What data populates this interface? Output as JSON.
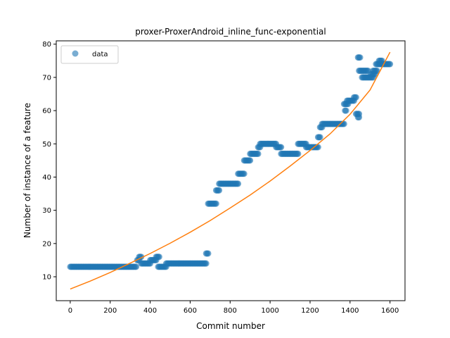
{
  "chart_data": {
    "type": "scatter",
    "title": "proxer-ProxerAndroid_inline_func-exponential",
    "xlabel": "Commit number",
    "ylabel": "Number of instance of a feature",
    "xlim": [
      -70,
      1675
    ],
    "ylim": [
      2.8,
      81
    ],
    "xticks": [
      0,
      200,
      400,
      600,
      800,
      1000,
      1200,
      1400,
      1600
    ],
    "yticks": [
      10,
      20,
      30,
      40,
      50,
      60,
      70,
      80
    ],
    "grid": false,
    "legend": {
      "position": "upper-left",
      "entries": [
        "data"
      ]
    },
    "colors": {
      "data": "#1f77b4",
      "fit": "#ff7f0e"
    },
    "series": [
      {
        "name": "data",
        "kind": "scatter",
        "segments": [
          {
            "x_start": 0,
            "x_end": 330,
            "y": 13
          },
          {
            "x_start": 335,
            "x_end": 345,
            "y": 15
          },
          {
            "x_start": 345,
            "x_end": 355,
            "y": 16
          },
          {
            "x_start": 355,
            "x_end": 400,
            "y": 14
          },
          {
            "x_start": 400,
            "x_end": 430,
            "y": 15
          },
          {
            "x_start": 430,
            "x_end": 445,
            "y": 16
          },
          {
            "x_start": 440,
            "x_end": 480,
            "y": 13
          },
          {
            "x_start": 480,
            "x_end": 680,
            "y": 14
          },
          {
            "x_start": 680,
            "x_end": 690,
            "y": 17
          },
          {
            "x_start": 690,
            "x_end": 730,
            "y": 32
          },
          {
            "x_start": 730,
            "x_end": 745,
            "y": 36
          },
          {
            "x_start": 745,
            "x_end": 840,
            "y": 38
          },
          {
            "x_start": 840,
            "x_end": 870,
            "y": 41
          },
          {
            "x_start": 870,
            "x_end": 900,
            "y": 45
          },
          {
            "x_start": 900,
            "x_end": 940,
            "y": 47
          },
          {
            "x_start": 940,
            "x_end": 950,
            "y": 49
          },
          {
            "x_start": 950,
            "x_end": 1030,
            "y": 50
          },
          {
            "x_start": 1030,
            "x_end": 1055,
            "y": 49
          },
          {
            "x_start": 1055,
            "x_end": 1140,
            "y": 47
          },
          {
            "x_start": 1140,
            "x_end": 1180,
            "y": 50
          },
          {
            "x_start": 1180,
            "x_end": 1240,
            "y": 49
          },
          {
            "x_start": 1240,
            "x_end": 1250,
            "y": 52
          },
          {
            "x_start": 1250,
            "x_end": 1260,
            "y": 55
          },
          {
            "x_start": 1260,
            "x_end": 1370,
            "y": 56
          },
          {
            "x_start": 1375,
            "x_end": 1380,
            "y": 60
          },
          {
            "x_start": 1370,
            "x_end": 1390,
            "y": 62
          },
          {
            "x_start": 1385,
            "x_end": 1420,
            "y": 63
          },
          {
            "x_start": 1420,
            "x_end": 1430,
            "y": 64
          },
          {
            "x_start": 1430,
            "x_end": 1445,
            "y": 59
          },
          {
            "x_start": 1440,
            "x_end": 1445,
            "y": 58
          },
          {
            "x_start": 1440,
            "x_end": 1450,
            "y": 76
          },
          {
            "x_start": 1445,
            "x_end": 1490,
            "y": 72
          },
          {
            "x_start": 1460,
            "x_end": 1515,
            "y": 70
          },
          {
            "x_start": 1505,
            "x_end": 1525,
            "y": 71
          },
          {
            "x_start": 1515,
            "x_end": 1535,
            "y": 72
          },
          {
            "x_start": 1530,
            "x_end": 1545,
            "y": 74
          },
          {
            "x_start": 1545,
            "x_end": 1560,
            "y": 75
          },
          {
            "x_start": 1550,
            "x_end": 1600,
            "y": 74
          }
        ]
      },
      {
        "name": "fit",
        "kind": "line",
        "x": [
          0,
          100,
          200,
          300,
          400,
          500,
          600,
          700,
          800,
          900,
          1000,
          1100,
          1200,
          1300,
          1400,
          1500,
          1600
        ],
        "y": [
          6.3,
          8.7,
          11.3,
          14.1,
          17.0,
          20.1,
          23.4,
          26.9,
          30.7,
          34.6,
          38.8,
          43.3,
          48.0,
          53.0,
          58.9,
          66.2,
          77.6
        ]
      }
    ]
  }
}
